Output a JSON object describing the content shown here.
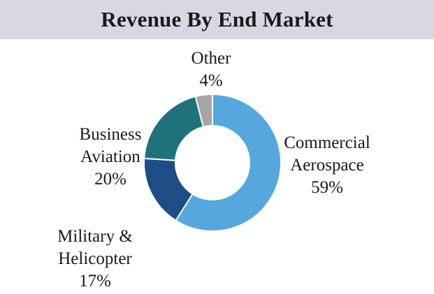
{
  "chart_data": {
    "type": "pie",
    "title": "Revenue By End Market",
    "donut": true,
    "slices": [
      {
        "label": [
          "Commercial",
          "Aerospace"
        ],
        "value": 59,
        "value_text": "59%",
        "color": "#55a7de"
      },
      {
        "label": [
          "Military &",
          "Helicopter"
        ],
        "value": 17,
        "value_text": "17%",
        "color": "#1e4d86"
      },
      {
        "label": [
          "Business",
          "Aviation"
        ],
        "value": 20,
        "value_text": "20%",
        "color": "#1e737b"
      },
      {
        "label": [
          "Other"
        ],
        "value": 4,
        "value_text": "4%",
        "color": "#a6a6a6"
      }
    ],
    "legend": "none"
  }
}
